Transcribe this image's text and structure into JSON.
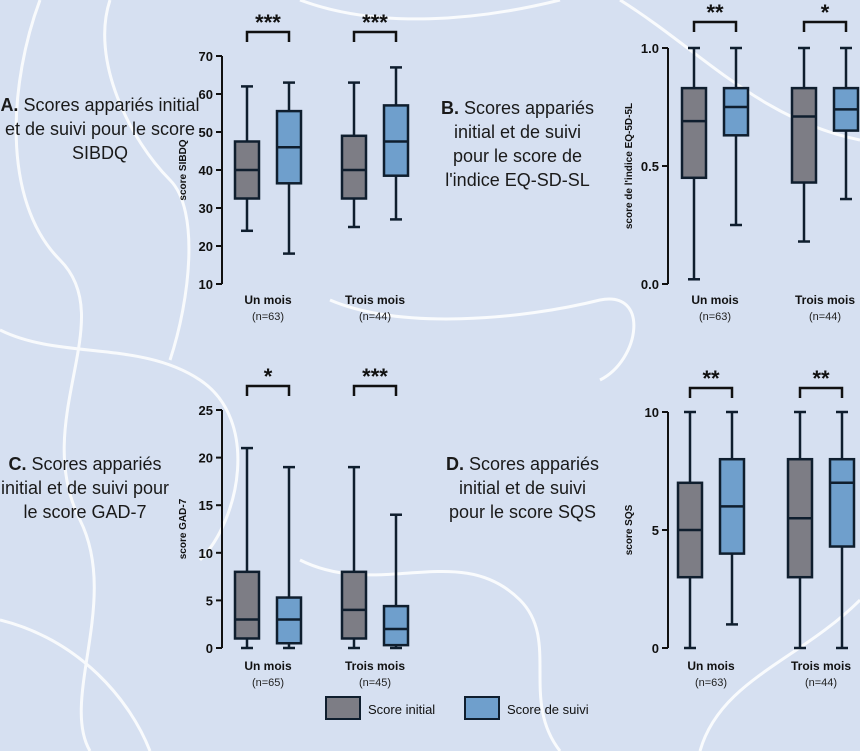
{
  "legend": [
    {
      "name": "Score initial",
      "color": "#7d7d85"
    },
    {
      "name": "Score de suivi",
      "color": "#6f9fcc"
    }
  ],
  "chart_data": [
    {
      "type": "box",
      "caption_label": "A.",
      "caption": "Scores appariés initial et de suivi pour le score SIBDQ",
      "ylabel": "score SIBDQ",
      "ylim": [
        10,
        70
      ],
      "yticks": [
        10,
        20,
        30,
        40,
        50,
        60,
        70
      ],
      "categories": [
        "Un mois",
        "Trois mois"
      ],
      "category_notes": [
        "(n=63)",
        "(n=44)"
      ],
      "significance": [
        "***",
        "***"
      ],
      "series": [
        {
          "values": [
            {
              "min": 24,
              "q1": 32.5,
              "median": 40,
              "q3": 47.5,
              "max": 62
            },
            {
              "min": 25,
              "q1": 32.5,
              "median": 40,
              "q3": 49,
              "max": 63
            }
          ]
        },
        {
          "values": [
            {
              "min": 18,
              "q1": 36.5,
              "median": 46,
              "q3": 55.5,
              "max": 63
            },
            {
              "min": 27,
              "q1": 38.5,
              "median": 47.5,
              "q3": 57,
              "max": 67
            }
          ]
        }
      ]
    },
    {
      "type": "box",
      "caption_label": "B.",
      "caption": "Scores appariés initial et de suivi pour le score de l'indice EQ-SD-SL",
      "ylabel": "score de l'indice EQ-5D-5L",
      "ylim": [
        0,
        1
      ],
      "yticks": [
        {
          "value": 0,
          "label": "0.0"
        },
        {
          "value": 0.5,
          "label": "0.5"
        },
        {
          "value": 1,
          "label": "1.0"
        }
      ],
      "categories": [
        "Un mois",
        "Trois mois"
      ],
      "category_notes": [
        "(n=63)",
        "(n=44)"
      ],
      "significance": [
        "**",
        "*"
      ],
      "series": [
        {
          "values": [
            {
              "min": 0.02,
              "q1": 0.45,
              "median": 0.69,
              "q3": 0.83,
              "max": 1
            },
            {
              "min": 0.18,
              "q1": 0.43,
              "median": 0.71,
              "q3": 0.83,
              "max": 1
            }
          ]
        },
        {
          "values": [
            {
              "min": 0.25,
              "q1": 0.63,
              "median": 0.75,
              "q3": 0.83,
              "max": 1
            },
            {
              "min": 0.36,
              "q1": 0.65,
              "median": 0.74,
              "q3": 0.83,
              "max": 1
            }
          ]
        }
      ]
    },
    {
      "type": "box",
      "caption_label": "C.",
      "caption": "Scores appariés initial et de suivi pour le score GAD-7",
      "ylabel": "score GAD-7",
      "ylim": [
        0,
        25
      ],
      "yticks": [
        0,
        5,
        10,
        15,
        20,
        25
      ],
      "categories": [
        "Un mois",
        "Trois mois"
      ],
      "category_notes": [
        "(n=65)",
        "(n=45)"
      ],
      "significance": [
        "*",
        "***"
      ],
      "series": [
        {
          "values": [
            {
              "min": 0,
              "q1": 1,
              "median": 3,
              "q3": 8,
              "max": 21
            },
            {
              "min": 0,
              "q1": 1,
              "median": 4,
              "q3": 8,
              "max": 19
            }
          ]
        },
        {
          "values": [
            {
              "min": 0,
              "q1": 0.5,
              "median": 3,
              "q3": 5.3,
              "max": 19
            },
            {
              "min": 0,
              "q1": 0.3,
              "median": 2,
              "q3": 4.4,
              "max": 14
            }
          ]
        }
      ]
    },
    {
      "type": "box",
      "caption_label": "D.",
      "caption": "Scores appariés initial et de suivi pour le score SQS",
      "ylabel": "score SQS",
      "ylim": [
        0,
        10
      ],
      "yticks": [
        0,
        5,
        10
      ],
      "categories": [
        "Un mois",
        "Trois mois"
      ],
      "category_notes": [
        "(n=63)",
        "(n=44)"
      ],
      "significance": [
        "**",
        "**"
      ],
      "series": [
        {
          "values": [
            {
              "min": 0,
              "q1": 3,
              "median": 5,
              "q3": 7,
              "max": 10
            },
            {
              "min": 0,
              "q1": 3,
              "median": 5.5,
              "q3": 8,
              "max": 10
            }
          ]
        },
        {
          "values": [
            {
              "min": 1,
              "q1": 4,
              "median": 6,
              "q3": 8,
              "max": 10
            },
            {
              "min": 0,
              "q1": 4.3,
              "median": 7,
              "q3": 8,
              "max": 10
            }
          ]
        }
      ]
    }
  ]
}
